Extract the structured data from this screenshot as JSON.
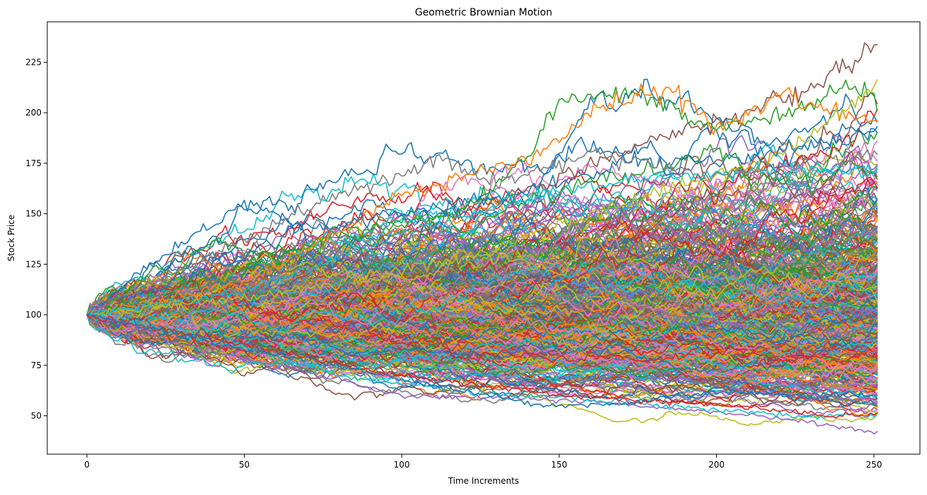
{
  "chart_data": {
    "type": "line",
    "title": "Geometric Brownian Motion",
    "xlabel": "Time Increments",
    "ylabel": "Stock Price",
    "xlim": [
      -12.6,
      264.6
    ],
    "ylim": [
      31,
      245
    ],
    "xticks": [
      0,
      50,
      100,
      150,
      200,
      250
    ],
    "xtick_labels": [
      "0",
      "50",
      "100",
      "150",
      "200",
      "250"
    ],
    "yticks": [
      50,
      75,
      100,
      125,
      150,
      175,
      200,
      225
    ],
    "ytick_labels": [
      "50",
      "75",
      "100",
      "125",
      "150",
      "175",
      "200",
      "225"
    ],
    "grid": false,
    "legend": "none",
    "n_steps": 252,
    "start_value": 100,
    "series_summary": {
      "min_final": 41,
      "max_final": 236,
      "typical_range_at_end": [
        55,
        180
      ]
    },
    "colors": [
      "#1f77b4",
      "#ff7f0e",
      "#2ca02c",
      "#d62728",
      "#9467bd",
      "#8c564b",
      "#e377c2",
      "#7f7f7f",
      "#bcbd22",
      "#17becf"
    ],
    "highlighted_paths": [
      {
        "color": "#8c564b",
        "points": [
          [
            0,
            100
          ],
          [
            40,
            112
          ],
          [
            80,
            128
          ],
          [
            120,
            150
          ],
          [
            150,
            168
          ],
          [
            185,
            190
          ],
          [
            200,
            195
          ],
          [
            230,
            212
          ],
          [
            252,
            236
          ]
        ]
      },
      {
        "color": "#2ca02c",
        "points": [
          [
            0,
            100
          ],
          [
            40,
            118
          ],
          [
            80,
            140
          ],
          [
            120,
            152
          ],
          [
            140,
            178
          ],
          [
            150,
            206
          ],
          [
            175,
            210
          ],
          [
            200,
            192
          ],
          [
            225,
            200
          ],
          [
            240,
            215
          ],
          [
            252,
            205
          ]
        ]
      },
      {
        "color": "#ff7f0e",
        "points": [
          [
            0,
            100
          ],
          [
            50,
            115
          ],
          [
            100,
            160
          ],
          [
            120,
            168
          ],
          [
            145,
            180
          ],
          [
            160,
            200
          ],
          [
            185,
            213
          ],
          [
            200,
            192
          ],
          [
            220,
            208
          ],
          [
            252,
            195
          ]
        ]
      },
      {
        "color": "#bcbd22",
        "points": [
          [
            0,
            100
          ],
          [
            60,
            110
          ],
          [
            120,
            128
          ],
          [
            180,
            160
          ],
          [
            220,
            178
          ],
          [
            240,
            200
          ],
          [
            252,
            214
          ]
        ]
      },
      {
        "color": "#1f77b4",
        "points": [
          [
            0,
            100
          ],
          [
            20,
            125
          ],
          [
            35,
            140
          ],
          [
            50,
            155
          ],
          [
            60,
            150
          ],
          [
            70,
            142
          ],
          [
            100,
            150
          ],
          [
            140,
            160
          ],
          [
            155,
            186
          ],
          [
            180,
            175
          ],
          [
            210,
            178
          ],
          [
            252,
            191
          ]
        ]
      },
      {
        "color": "#7f7f7f",
        "points": [
          [
            0,
            100
          ],
          [
            40,
            130
          ],
          [
            80,
            160
          ],
          [
            100,
            168
          ],
          [
            113,
            178
          ],
          [
            130,
            165
          ],
          [
            160,
            180
          ],
          [
            200,
            168
          ],
          [
            252,
            180
          ]
        ]
      },
      {
        "color": "#17becf",
        "points": [
          [
            0,
            100
          ],
          [
            50,
            112
          ],
          [
            100,
            140
          ],
          [
            150,
            163
          ],
          [
            200,
            170
          ],
          [
            252,
            172
          ]
        ]
      },
      {
        "color": "#9467bd",
        "points": [
          [
            0,
            100
          ],
          [
            30,
            85
          ],
          [
            60,
            75
          ],
          [
            100,
            60
          ],
          [
            150,
            58
          ],
          [
            200,
            52
          ],
          [
            230,
            47
          ],
          [
            252,
            41
          ]
        ]
      },
      {
        "color": "#17becf",
        "points": [
          [
            0,
            100
          ],
          [
            40,
            88
          ],
          [
            80,
            70
          ],
          [
            120,
            62
          ],
          [
            160,
            58
          ],
          [
            200,
            53
          ],
          [
            225,
            50
          ],
          [
            252,
            50
          ]
        ]
      },
      {
        "color": "#d62728",
        "points": [
          [
            0,
            100
          ],
          [
            50,
            85
          ],
          [
            100,
            70
          ],
          [
            150,
            60
          ],
          [
            200,
            56
          ],
          [
            235,
            50
          ],
          [
            252,
            51
          ]
        ]
      },
      {
        "color": "#1f77b4",
        "points": [
          [
            0,
            100
          ],
          [
            50,
            84
          ],
          [
            100,
            68
          ],
          [
            145,
            55
          ],
          [
            170,
            56
          ],
          [
            200,
            62
          ],
          [
            252,
            60
          ]
        ]
      }
    ]
  }
}
